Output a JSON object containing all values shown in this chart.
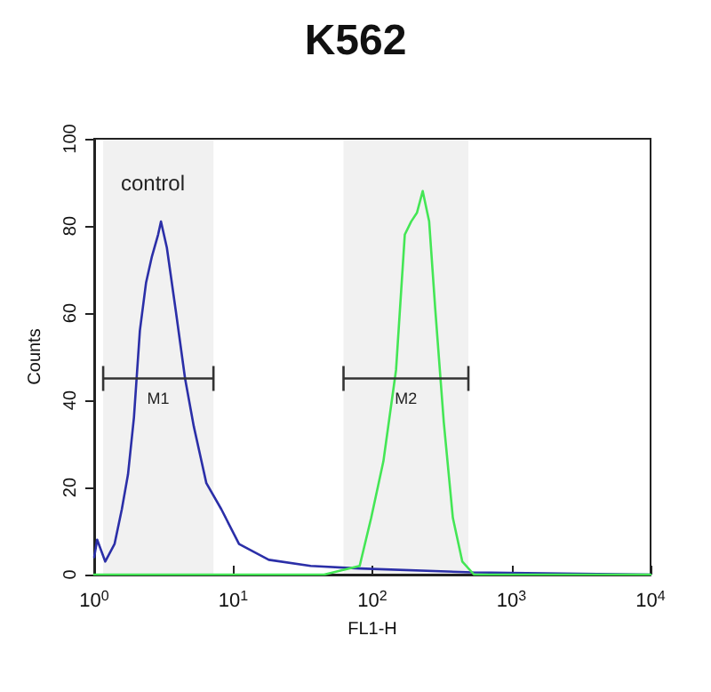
{
  "chart_data": {
    "type": "line",
    "title": "K562",
    "xlabel": "FL1-H",
    "ylabel": "Counts",
    "annotations": [
      "control"
    ],
    "log": "x",
    "grid": false,
    "marker": "none",
    "line_style": "solid",
    "xlim": [
      1,
      10000
    ],
    "ylim": [
      0,
      100
    ],
    "xticks": [
      {
        "value": 1,
        "label": "10$^{0}$"
      },
      {
        "value": 10,
        "label": "10$^{1}$"
      },
      {
        "value": 100,
        "label": "10$^{2}$"
      },
      {
        "value": 1000,
        "label": "10$^{3}$"
      },
      {
        "value": 10000,
        "label": "10$^{4}$"
      }
    ],
    "yticks": [
      0,
      20,
      40,
      60,
      80,
      100
    ],
    "bands": [
      {
        "axis": "x",
        "from": 1.16,
        "to": 7.2,
        "label": "M1",
        "color": "#333333"
      },
      {
        "axis": "x",
        "from": 62,
        "to": 490,
        "label": "M2",
        "color": "#333333"
      }
    ],
    "series": [
      {
        "color": "#2b2fa8",
        "x": [
          1,
          1.05,
          1.2,
          1.4,
          1.58,
          1.75,
          1.93,
          2.13,
          2.36,
          2.6,
          2.88,
          3.02,
          3.33,
          3.88,
          4.5,
          5.2,
          6.4,
          8.2,
          11,
          18,
          36,
          81,
          530,
          10000
        ],
        "values": [
          4,
          8,
          3,
          7,
          15,
          23,
          36,
          56,
          67,
          73,
          78,
          81,
          75,
          60,
          45,
          34,
          21,
          15,
          7,
          3.4,
          2,
          1.4,
          0.5,
          0
        ]
      },
      {
        "color": "#44e655",
        "x": [
          1,
          45,
          81,
          98,
          120,
          148,
          171,
          190,
          209,
          230,
          256,
          283,
          326,
          379,
          443,
          538,
          10000
        ],
        "values": [
          0,
          0,
          2,
          13,
          26,
          47,
          78,
          81,
          83,
          88,
          81,
          61,
          35,
          13,
          3,
          0,
          0
        ]
      }
    ]
  }
}
